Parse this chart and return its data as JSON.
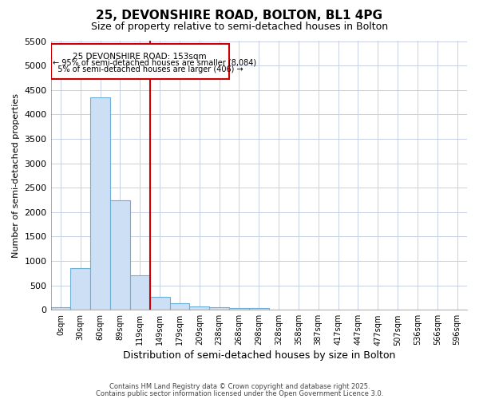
{
  "title": "25, DEVONSHIRE ROAD, BOLTON, BL1 4PG",
  "subtitle": "Size of property relative to semi-detached houses in Bolton",
  "xlabel": "Distribution of semi-detached houses by size in Bolton",
  "ylabel": "Number of semi-detached properties",
  "footer1": "Contains HM Land Registry data © Crown copyright and database right 2025.",
  "footer2": "Contains public sector information licensed under the Open Government Licence 3.0.",
  "bin_labels": [
    "0sqm",
    "30sqm",
    "60sqm",
    "89sqm",
    "119sqm",
    "149sqm",
    "179sqm",
    "209sqm",
    "238sqm",
    "268sqm",
    "298sqm",
    "328sqm",
    "358sqm",
    "387sqm",
    "417sqm",
    "447sqm",
    "477sqm",
    "507sqm",
    "536sqm",
    "566sqm",
    "596sqm"
  ],
  "bar_values": [
    50,
    850,
    4350,
    2250,
    700,
    270,
    130,
    70,
    55,
    40,
    30,
    5,
    3,
    2,
    1,
    1,
    0,
    0,
    0,
    0,
    0
  ],
  "bar_color": "#ccdff5",
  "bar_edge_color": "#6baed6",
  "ylim": [
    0,
    5500
  ],
  "yticks": [
    0,
    500,
    1000,
    1500,
    2000,
    2500,
    3000,
    3500,
    4000,
    4500,
    5000,
    5500
  ],
  "vline_color": "#cc0000",
  "annotation_title": "25 DEVONSHIRE ROAD: 153sqm",
  "annotation_line1": "← 95% of semi-detached houses are smaller (8,084)",
  "annotation_line2": "  5% of semi-detached houses are larger (406) →",
  "annotation_box_color": "#cc0000",
  "background_color": "#ffffff",
  "grid_color": "#c8d0e8",
  "title_color": "#000000",
  "subtitle_color": "#000000"
}
